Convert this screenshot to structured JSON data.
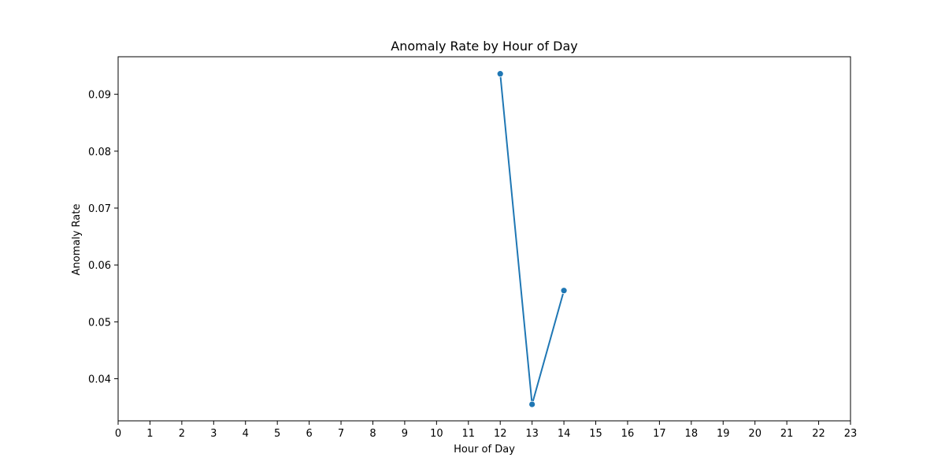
{
  "chart_data": {
    "type": "line",
    "title": "Anomaly Rate by Hour of Day",
    "xlabel": "Hour of Day",
    "ylabel": "Anomaly Rate",
    "x": [
      12,
      13,
      14
    ],
    "series": [
      {
        "values": [
          0.0936,
          0.0355,
          0.0555
        ],
        "color": "#1f77b4"
      }
    ],
    "xlim": [
      0,
      23
    ],
    "ylim": [
      0.0326,
      0.0966
    ],
    "xticks": [
      "0",
      "1",
      "2",
      "3",
      "4",
      "5",
      "6",
      "7",
      "8",
      "9",
      "10",
      "11",
      "12",
      "13",
      "14",
      "15",
      "16",
      "17",
      "18",
      "19",
      "20",
      "21",
      "22",
      "23"
    ],
    "yticks": [
      0.04,
      0.05,
      0.06,
      0.07,
      0.08,
      0.09
    ],
    "ytick_labels": [
      "0.04",
      "0.05",
      "0.06",
      "0.07",
      "0.08",
      "0.09"
    ],
    "grid": false,
    "legend": "none"
  }
}
